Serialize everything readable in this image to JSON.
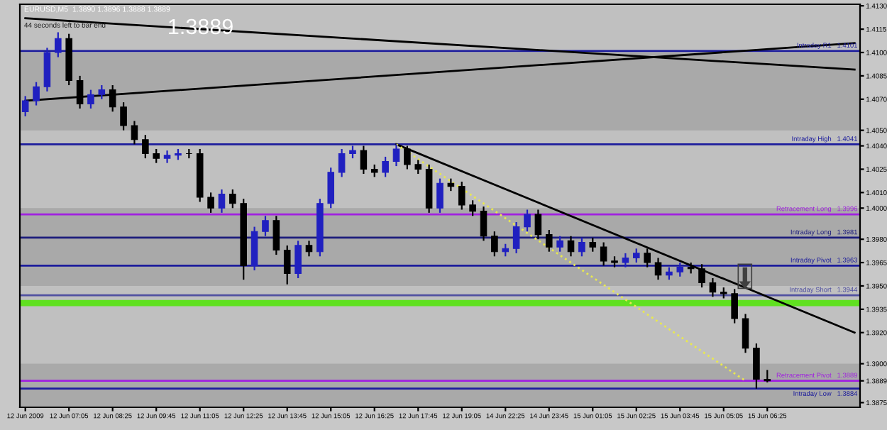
{
  "chart_data": {
    "type": "candlestick",
    "title": "EURUSD,M5  1.3890 1.3896 1.3888 1.3889",
    "annotations": [
      "1.3889",
      "44 seconds left to bar end"
    ],
    "categories": [
      "12 Jun 2009",
      null,
      null,
      null,
      "12 Jun 07:05",
      null,
      null,
      null,
      "12 Jun 08:25",
      null,
      null,
      null,
      "12 Jun 09:45",
      null,
      null,
      null,
      "12 Jun 11:05",
      null,
      null,
      null,
      "12 Jun 12:25",
      null,
      null,
      null,
      "12 Jun 13:45",
      null,
      null,
      null,
      "12 Jun 15:05",
      null,
      null,
      null,
      "12 Jun 16:25",
      null,
      null,
      null,
      "12 Jun 17:45",
      null,
      null,
      null,
      "12 Jun 19:05",
      null,
      null,
      null,
      "14 Jun 22:25",
      null,
      null,
      null,
      "14 Jun 23:45",
      null,
      null,
      null,
      "15 Jun 01:05",
      null,
      null,
      null,
      "15 Jun 02:25",
      null,
      null,
      null,
      "15 Jun 03:45",
      null,
      null,
      null,
      "15 Jun 05:05",
      null,
      null,
      null,
      "15 Jun 06:25",
      null,
      null,
      null,
      null,
      null,
      null,
      null,
      null
    ],
    "ohlc": [
      [
        1.4062,
        1.4072,
        1.4059,
        1.4069
      ],
      [
        1.4069,
        1.4081,
        1.4066,
        1.4078
      ],
      [
        1.4078,
        1.4103,
        1.4075,
        1.41
      ],
      [
        1.41,
        1.4113,
        1.4097,
        1.4109
      ],
      [
        1.4109,
        1.4112,
        1.4079,
        1.4082
      ],
      [
        1.4082,
        1.4085,
        1.4064,
        1.4067
      ],
      [
        1.4067,
        1.4076,
        1.4064,
        1.4073
      ],
      [
        1.4073,
        1.4079,
        1.407,
        1.4076
      ],
      [
        1.4076,
        1.4079,
        1.4062,
        1.4065
      ],
      [
        1.4065,
        1.4068,
        1.405,
        1.4053
      ],
      [
        1.4053,
        1.4056,
        1.4041,
        1.4044
      ],
      [
        1.4044,
        1.4047,
        1.4032,
        1.4035
      ],
      [
        1.4035,
        1.4038,
        1.4029,
        1.4032
      ],
      [
        1.4032,
        1.4037,
        1.4029,
        1.4034
      ],
      [
        1.4034,
        1.4038,
        1.4031,
        1.4035
      ],
      [
        1.4035,
        1.4038,
        1.4032,
        1.4035
      ],
      [
        1.4035,
        1.4038,
        1.4004,
        1.4007
      ],
      [
        1.4007,
        1.401,
        1.3997,
        1.4
      ],
      [
        1.4,
        1.4012,
        1.3997,
        1.4009
      ],
      [
        1.4009,
        1.4012,
        1.4,
        1.4003
      ],
      [
        1.4003,
        1.4006,
        1.3954,
        1.3963
      ],
      [
        1.3963,
        1.3988,
        1.396,
        1.3985
      ],
      [
        1.3985,
        1.3995,
        1.3982,
        1.3992
      ],
      [
        1.3992,
        1.3995,
        1.397,
        1.3973
      ],
      [
        1.3973,
        1.3976,
        1.3951,
        1.3958
      ],
      [
        1.3958,
        1.3979,
        1.3955,
        1.3976
      ],
      [
        1.3976,
        1.3979,
        1.3969,
        1.3972
      ],
      [
        1.3972,
        1.4006,
        1.3969,
        1.4003
      ],
      [
        1.4003,
        1.4026,
        1.4,
        1.4023
      ],
      [
        1.4023,
        1.4038,
        1.402,
        1.4035
      ],
      [
        1.4035,
        1.404,
        1.4032,
        1.4037
      ],
      [
        1.4037,
        1.404,
        1.4022,
        1.4025
      ],
      [
        1.4025,
        1.4028,
        1.402,
        1.4023
      ],
      [
        1.4023,
        1.4033,
        1.402,
        1.403
      ],
      [
        1.403,
        1.4041,
        1.4027,
        1.4038
      ],
      [
        1.4038,
        1.404,
        1.4025,
        1.4028
      ],
      [
        1.4028,
        1.4031,
        1.4022,
        1.4025
      ],
      [
        1.4025,
        1.4028,
        1.3997,
        1.4
      ],
      [
        1.4,
        1.4019,
        1.3997,
        1.4016
      ],
      [
        1.4016,
        1.4019,
        1.4011,
        1.4014
      ],
      [
        1.4014,
        1.4017,
        1.3999,
        1.4002
      ],
      [
        1.4002,
        1.4005,
        1.3995,
        1.3998
      ],
      [
        1.3998,
        1.4001,
        1.3979,
        1.3982
      ],
      [
        1.3982,
        1.3985,
        1.3969,
        1.3972
      ],
      [
        1.3972,
        1.3977,
        1.3969,
        1.3974
      ],
      [
        1.3974,
        1.3991,
        1.3971,
        1.3988
      ],
      [
        1.3988,
        1.3999,
        1.3985,
        1.3996
      ],
      [
        1.3996,
        1.3999,
        1.398,
        1.3983
      ],
      [
        1.3983,
        1.3986,
        1.3972,
        1.3975
      ],
      [
        1.3975,
        1.3982,
        1.3972,
        1.3979
      ],
      [
        1.3979,
        1.3982,
        1.3969,
        1.3972
      ],
      [
        1.3972,
        1.3981,
        1.3969,
        1.3978
      ],
      [
        1.3978,
        1.3981,
        1.3972,
        1.3975
      ],
      [
        1.3975,
        1.3978,
        1.3963,
        1.3966
      ],
      [
        1.3966,
        1.3969,
        1.3962,
        1.3965
      ],
      [
        1.3965,
        1.3971,
        1.3962,
        1.3968
      ],
      [
        1.3968,
        1.3974,
        1.3965,
        1.3971
      ],
      [
        1.3971,
        1.3974,
        1.3962,
        1.3965
      ],
      [
        1.3965,
        1.3968,
        1.3954,
        1.3957
      ],
      [
        1.3957,
        1.3962,
        1.3954,
        1.3959
      ],
      [
        1.3959,
        1.3965,
        1.3956,
        1.3962
      ],
      [
        1.3962,
        1.3965,
        1.3958,
        1.3961
      ],
      [
        1.3961,
        1.3964,
        1.3949,
        1.3952
      ],
      [
        1.3952,
        1.3955,
        1.3943,
        1.3946
      ],
      [
        1.3946,
        1.3949,
        1.3942,
        1.3945
      ],
      [
        1.3945,
        1.3948,
        1.3926,
        1.3929
      ],
      [
        1.3929,
        1.3932,
        1.3907,
        1.391
      ],
      [
        1.391,
        1.3913,
        1.3884,
        1.389
      ],
      [
        1.389,
        1.3896,
        1.3888,
        1.3889
      ],
      null,
      null,
      null,
      null,
      null,
      null,
      null,
      null
    ],
    "colors": [
      "#2020c0",
      "#2020c0",
      "#2020c0",
      "#2020c0",
      "#000000",
      "#000000",
      "#2020c0",
      "#2020c0",
      "#000000",
      "#000000",
      "#000000",
      "#000000",
      "#000000",
      "#2020c0",
      "#2020c0",
      "#000000",
      "#000000",
      "#000000",
      "#2020c0",
      "#000000",
      "#000000",
      "#2020c0",
      "#2020c0",
      "#000000",
      "#000000",
      "#2020c0",
      "#000000",
      "#2020c0",
      "#2020c0",
      "#2020c0",
      "#2020c0",
      "#000000",
      "#000000",
      "#2020c0",
      "#2020c0",
      "#000000",
      "#000000",
      "#000000",
      "#2020c0",
      "#000000",
      "#000000",
      "#000000",
      "#000000",
      "#000000",
      "#2020c0",
      "#2020c0",
      "#2020c0",
      "#000000",
      "#000000",
      "#2020c0",
      "#000000",
      "#2020c0",
      "#000000",
      "#000000",
      "#000000",
      "#2020c0",
      "#2020c0",
      "#000000",
      "#000000",
      "#2020c0",
      "#2020c0",
      "#000000",
      "#000000",
      "#000000",
      "#000000",
      "#000000",
      "#000000",
      "#000000",
      "#000000",
      null,
      null,
      null,
      null,
      null,
      null,
      null,
      null
    ],
    "series": [
      {
        "type": "line",
        "color": "#000000",
        "line_style": "solid",
        "values": [
          1.4122,
          null,
          null,
          null,
          null,
          null,
          null,
          null,
          null,
          null,
          null,
          null,
          null,
          null,
          null,
          null,
          null,
          null,
          null,
          null,
          null,
          null,
          null,
          null,
          null,
          null,
          null,
          null,
          null,
          null,
          null,
          null,
          null,
          null,
          null,
          null,
          null,
          null,
          null,
          null,
          null,
          null,
          null,
          null,
          null,
          null,
          null,
          null,
          null,
          null,
          null,
          null,
          null,
          null,
          null,
          null,
          null,
          null,
          null,
          null,
          null,
          null,
          null,
          null,
          null,
          null,
          null,
          null,
          null,
          null,
          null,
          null,
          null,
          null,
          null,
          null,
          1.4089
        ]
      },
      {
        "type": "line",
        "color": "#000000",
        "line_style": "solid",
        "values": [
          1.4069,
          null,
          null,
          null,
          null,
          null,
          null,
          null,
          null,
          null,
          null,
          null,
          null,
          null,
          null,
          null,
          null,
          null,
          null,
          null,
          null,
          null,
          null,
          null,
          null,
          null,
          null,
          null,
          null,
          null,
          null,
          null,
          null,
          null,
          null,
          null,
          null,
          null,
          null,
          null,
          null,
          null,
          null,
          null,
          null,
          null,
          null,
          null,
          null,
          null,
          null,
          null,
          null,
          null,
          null,
          null,
          null,
          null,
          null,
          null,
          null,
          null,
          null,
          null,
          null,
          null,
          null,
          null,
          null,
          null,
          null,
          null,
          null,
          null,
          null,
          null,
          1.4106
        ]
      },
      {
        "type": "line",
        "color": "#000000",
        "line_style": "solid",
        "values": [
          null,
          null,
          null,
          null,
          null,
          null,
          null,
          null,
          null,
          null,
          null,
          null,
          null,
          null,
          null,
          null,
          null,
          null,
          null,
          null,
          null,
          null,
          null,
          null,
          null,
          null,
          null,
          null,
          null,
          null,
          null,
          null,
          null,
          null,
          1.4041,
          null,
          null,
          null,
          null,
          null,
          null,
          null,
          null,
          null,
          null,
          null,
          null,
          null,
          null,
          null,
          null,
          null,
          null,
          null,
          null,
          null,
          null,
          null,
          null,
          null,
          null,
          null,
          null,
          null,
          null,
          null,
          null,
          null,
          null,
          null,
          null,
          null,
          null,
          null,
          null,
          null,
          1.392
        ]
      },
      {
        "type": "line",
        "color": "#e8e850",
        "line_style": "dotted",
        "values": [
          null,
          null,
          null,
          null,
          null,
          null,
          null,
          null,
          null,
          null,
          null,
          null,
          null,
          null,
          null,
          null,
          null,
          null,
          null,
          null,
          null,
          null,
          null,
          null,
          null,
          null,
          null,
          null,
          null,
          null,
          null,
          null,
          null,
          null,
          1.4041,
          null,
          null,
          null,
          null,
          null,
          null,
          null,
          null,
          null,
          null,
          null,
          null,
          null,
          null,
          null,
          null,
          null,
          null,
          null,
          null,
          null,
          null,
          null,
          null,
          null,
          null,
          null,
          null,
          null,
          null,
          null,
          1.3889,
          null,
          null,
          null,
          null,
          null,
          null,
          null,
          null,
          null,
          null
        ]
      }
    ],
    "ref_lines": [
      {
        "axis": "y",
        "value": 1.4101,
        "label": "Intraday R1   1.4101",
        "color": "#1c1c9c"
      },
      {
        "axis": "y",
        "value": 1.4041,
        "label": "Intraday High   1.4041",
        "color": "#1c1c9c"
      },
      {
        "axis": "y",
        "value": 1.3996,
        "label": "Retracement Long   1.3996",
        "color": "#a020e0"
      },
      {
        "axis": "y",
        "value": 1.3981,
        "label": "Intraday Long   1.3981",
        "color": "#1c1c7c"
      },
      {
        "axis": "y",
        "value": 1.3963,
        "label": "Intraday Pivot   1.3963",
        "color": "#1c1c9c"
      },
      {
        "axis": "y",
        "value": 1.3944,
        "label": "Intraday Short   1.3944",
        "color": "#5050a0"
      },
      {
        "axis": "y",
        "value": 1.3889,
        "label": "Retracement Pivot   1.3889",
        "color": "#a020e0"
      },
      {
        "axis": "y",
        "value": 1.3884,
        "label": "Intraday Low   1.3884",
        "color": "#1c1c9c"
      }
    ],
    "bands": [
      {
        "axis": "y",
        "from": 1.405,
        "to": 1.41,
        "color": "#a9a9a9"
      },
      {
        "axis": "y",
        "from": 1.395,
        "to": 1.4,
        "color": "#a9a9a9"
      },
      {
        "axis": "y",
        "from": 1.3872,
        "to": 1.39,
        "color": "#a9a9a9"
      },
      {
        "axis": "y",
        "from": 1.3937,
        "to": 1.3941,
        "color": "#60e020"
      }
    ],
    "ylim": [
      1.3872,
      1.4131
    ],
    "yticks": [
      {
        "value": 1.413,
        "label": "1.4130"
      },
      1.4115,
      {
        "value": 1.41,
        "label": "1.4100"
      },
      1.4085,
      {
        "value": 1.407,
        "label": "1.4070"
      },
      {
        "value": 1.405,
        "label": "1.4050"
      },
      {
        "value": 1.404,
        "label": "1.4040"
      },
      1.4025,
      {
        "value": 1.401,
        "label": "1.4010"
      },
      {
        "value": 1.4,
        "label": "1.4000"
      },
      {
        "value": 1.398,
        "label": "1.3980"
      },
      1.3965,
      {
        "value": 1.395,
        "label": "1.3950"
      },
      1.3935,
      {
        "value": 1.392,
        "label": "1.3920"
      },
      {
        "value": 1.39,
        "label": "1.3900"
      },
      1.3889,
      1.3875
    ],
    "grid": false,
    "legend": false
  }
}
